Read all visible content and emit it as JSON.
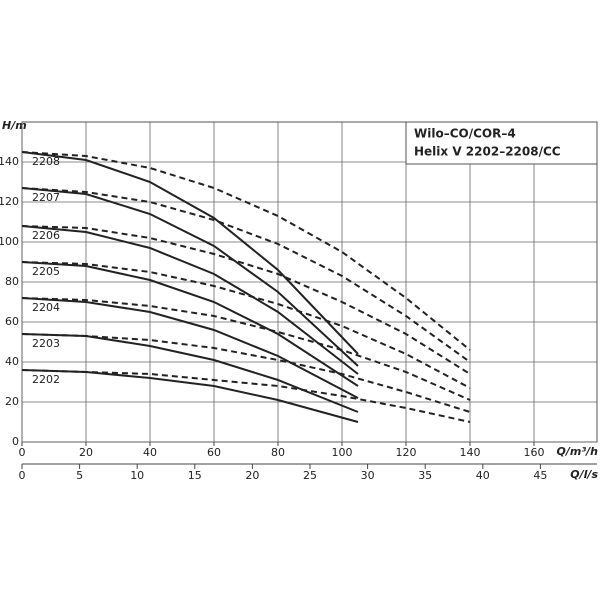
{
  "chart_data": {
    "type": "line",
    "title": [
      "Wilo–CO/COR–4",
      "Helix V 2202–2208/CC"
    ],
    "y_label": "H/m",
    "x_label": "Q/m³/h",
    "x2_label": "Q/l/s",
    "xlim": [
      0,
      180
    ],
    "xticks": [
      0,
      20,
      40,
      60,
      80,
      100,
      120,
      140,
      160
    ],
    "x2lim": [
      0,
      50
    ],
    "x2ticks": [
      0,
      5,
      10,
      15,
      20,
      25,
      30,
      35,
      40,
      45
    ],
    "ylim": [
      0,
      160
    ],
    "yticks": [
      0,
      20,
      40,
      60,
      80,
      100,
      120,
      140
    ],
    "grid": true,
    "color": "#222",
    "series": [
      {
        "name": "2208",
        "dash": false,
        "x": [
          0,
          20,
          40,
          60,
          80,
          105
        ],
        "values": [
          145,
          141,
          130,
          112,
          86,
          44
        ]
      },
      {
        "name": "2207",
        "dash": false,
        "x": [
          0,
          20,
          40,
          60,
          80,
          105
        ],
        "values": [
          127,
          124,
          114,
          98,
          75,
          38
        ]
      },
      {
        "name": "2206",
        "dash": false,
        "x": [
          0,
          20,
          40,
          60,
          80,
          105
        ],
        "values": [
          108,
          105,
          97,
          84,
          65,
          34
        ]
      },
      {
        "name": "2205",
        "dash": false,
        "x": [
          0,
          20,
          40,
          60,
          80,
          105
        ],
        "values": [
          90,
          88,
          81,
          70,
          54,
          28
        ]
      },
      {
        "name": "2204",
        "dash": false,
        "x": [
          0,
          20,
          40,
          60,
          80,
          105
        ],
        "values": [
          72,
          70,
          65,
          56,
          43,
          22
        ]
      },
      {
        "name": "2203",
        "dash": false,
        "x": [
          0,
          20,
          40,
          60,
          80,
          105
        ],
        "values": [
          54,
          53,
          48,
          41,
          31,
          15
        ]
      },
      {
        "name": "2202",
        "dash": false,
        "x": [
          0,
          20,
          40,
          60,
          80,
          105
        ],
        "values": [
          36,
          35,
          32,
          28,
          21,
          10
        ]
      },
      {
        "dash": true,
        "x": [
          0,
          20,
          40,
          60,
          80,
          100,
          120,
          140
        ],
        "values": [
          145,
          143,
          137,
          127,
          113,
          95,
          72,
          46
        ]
      },
      {
        "dash": true,
        "x": [
          0,
          20,
          40,
          60,
          80,
          100,
          120,
          140
        ],
        "values": [
          127,
          125,
          120,
          111,
          99,
          83,
          63,
          40
        ]
      },
      {
        "dash": true,
        "x": [
          0,
          20,
          40,
          60,
          80,
          100,
          120,
          140
        ],
        "values": [
          108,
          107,
          102,
          94,
          84,
          70,
          54,
          34
        ]
      },
      {
        "dash": true,
        "x": [
          0,
          20,
          40,
          60,
          80,
          100,
          120,
          140
        ],
        "values": [
          90,
          89,
          85,
          78,
          69,
          58,
          44,
          27
        ]
      },
      {
        "dash": true,
        "x": [
          0,
          20,
          40,
          60,
          80,
          100,
          120,
          140
        ],
        "values": [
          72,
          71,
          68,
          63,
          55,
          46,
          35,
          21
        ]
      },
      {
        "dash": true,
        "x": [
          0,
          20,
          40,
          60,
          80,
          100,
          120,
          140
        ],
        "values": [
          54,
          53,
          51,
          47,
          41,
          34,
          25,
          15
        ]
      },
      {
        "dash": true,
        "x": [
          0,
          20,
          40,
          60,
          80,
          100,
          120,
          140
        ],
        "values": [
          36,
          35,
          34,
          31,
          28,
          23,
          17,
          10
        ]
      }
    ]
  }
}
